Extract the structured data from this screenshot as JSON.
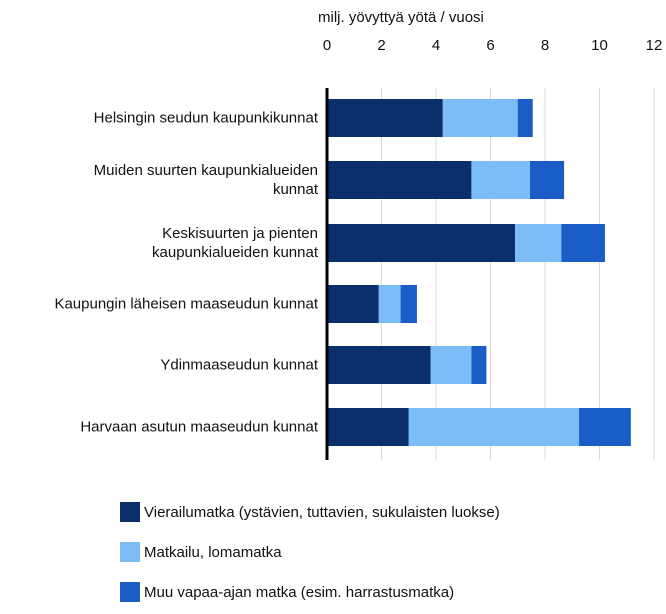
{
  "chart_data": {
    "type": "stacked_bar_horizontal",
    "x_axis_label": "milj. yövyttyä yötä / vuosi",
    "categories": [
      "Helsingin seudun kaupunkikunnat",
      "Muiden suurten kaupunkialueiden\nkunnat",
      "Keskisuurten ja pienten\nkaupunkialueiden kunnat",
      "Kaupungin läheisen maaseudun kunnat",
      "Ydinmaaseudun kunnat",
      "Harvaan asutun maaseudun kunnat"
    ],
    "series": [
      {
        "name": "Vierailumatka (ystävien, tuttavien, sukulaisten luokse)",
        "color": "#0b2f6b",
        "values": [
          4.25,
          5.3,
          6.9,
          1.9,
          3.8,
          3.0
        ]
      },
      {
        "name": "Matkailu, lomamatka",
        "color": "#7cbdf8",
        "values": [
          2.75,
          2.15,
          1.7,
          0.8,
          1.5,
          6.25
        ]
      },
      {
        "name": "Muu vapaa-ajan matka (esim. harrastusmatka)",
        "color": "#1a5dc6",
        "values": [
          0.55,
          1.25,
          1.6,
          0.6,
          0.55,
          1.9
        ]
      }
    ],
    "xlim": [
      0,
      12
    ],
    "xticks": [
      0,
      2,
      4,
      6,
      8,
      10,
      12
    ],
    "grid": true,
    "legend": "bottom"
  }
}
